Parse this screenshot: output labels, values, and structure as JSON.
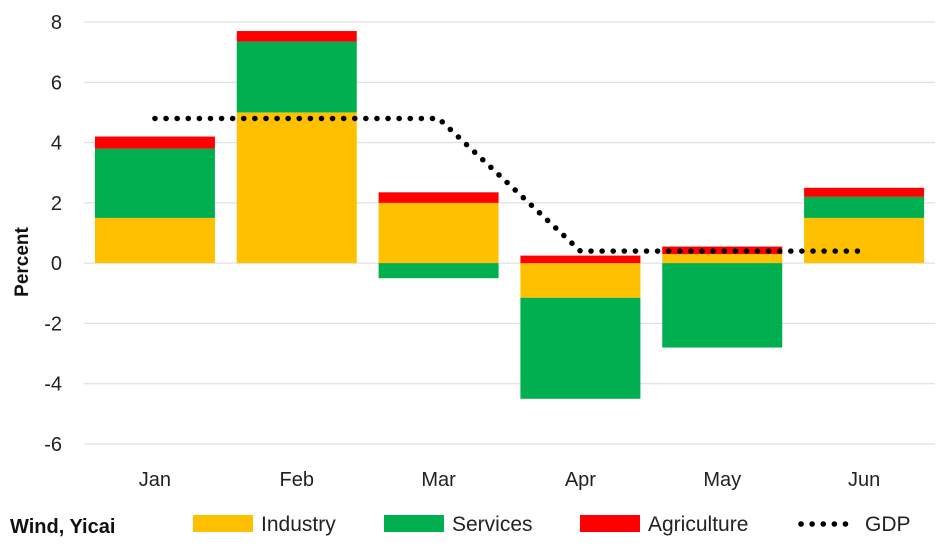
{
  "chart_data": {
    "type": "bar",
    "stacked": true,
    "title": "",
    "xlabel": "",
    "ylabel": "Percent",
    "ylim": [
      -6,
      8
    ],
    "yticks": [
      8,
      6,
      4,
      2,
      0,
      -2,
      -4,
      -6
    ],
    "categories": [
      "Jan",
      "Feb",
      "Mar",
      "Apr",
      "May",
      "Jun"
    ],
    "series": [
      {
        "name": "Industry",
        "color": "#FFC000",
        "values": [
          1.5,
          5.0,
          2.0,
          -1.15,
          0.3,
          1.5
        ]
      },
      {
        "name": "Services",
        "color": "#00B050",
        "values": [
          2.3,
          2.35,
          -0.5,
          -3.35,
          -2.8,
          0.7
        ]
      },
      {
        "name": "Agriculture",
        "color": "#FF0000",
        "values": [
          0.4,
          0.35,
          0.35,
          0.25,
          0.25,
          0.3
        ]
      }
    ],
    "line": {
      "name": "GDP",
      "color": "#000000",
      "style": "dotted",
      "values": [
        4.8,
        4.8,
        4.8,
        0.4,
        0.4,
        0.4
      ]
    },
    "legend": {
      "position": "bottom",
      "entries": [
        "Industry",
        "Services",
        "Agriculture",
        "GDP"
      ]
    },
    "source": "Wind, Yicai",
    "grid": true
  }
}
